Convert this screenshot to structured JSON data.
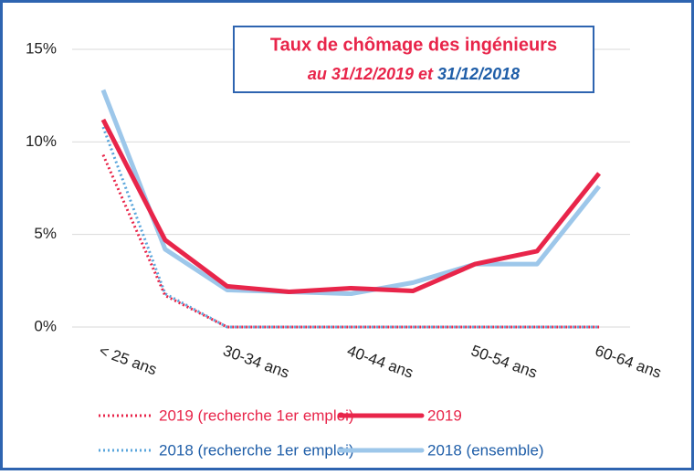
{
  "chart_data": {
    "type": "line",
    "title": "Taux de chômage des ingénieurs",
    "subtitle_parts": [
      {
        "text": "au 31/12/2019 et",
        "color": "#e8254a"
      },
      {
        "text": "31/12/2018",
        "color": "#1f5ea8"
      }
    ],
    "categories": [
      "< 25 ans",
      null,
      "30-34 ans",
      null,
      "40-44 ans",
      null,
      "50-54 ans",
      null,
      "60-64 ans"
    ],
    "series": [
      {
        "name": "2019 (recherche 1er emploi)",
        "color": "#e8254a",
        "text_color": "#e8254a",
        "style": "dotted",
        "values": [
          9.3,
          1.7,
          0,
          0,
          0,
          0,
          0,
          0,
          0
        ]
      },
      {
        "name": "2019",
        "color": "#e8254a",
        "text_color": "#e8254a",
        "style": "solid",
        "values": [
          11.2,
          4.7,
          2.2,
          1.9,
          2.1,
          1.95,
          3.4,
          4.1,
          8.3
        ]
      },
      {
        "name": "2018 (recherche 1er emploi)",
        "color": "#5aa6dc",
        "text_color": "#1f5ea8",
        "style": "dotted",
        "values": [
          10.8,
          1.8,
          0,
          0,
          0,
          0,
          0,
          0,
          0
        ]
      },
      {
        "name": "2018 (ensemble)",
        "color": "#9dc7ea",
        "text_color": "#1f5ea8",
        "style": "solid",
        "values": [
          12.8,
          4.2,
          2.0,
          1.9,
          1.8,
          2.4,
          3.4,
          3.4,
          7.6
        ]
      }
    ],
    "ylim": [
      0,
      15
    ],
    "yticks": [
      {
        "value": 0,
        "label": "0%"
      },
      {
        "value": 5,
        "label": "5%"
      },
      {
        "value": 10,
        "label": "10%"
      },
      {
        "value": 15,
        "label": "15%"
      }
    ],
    "grid": true
  }
}
